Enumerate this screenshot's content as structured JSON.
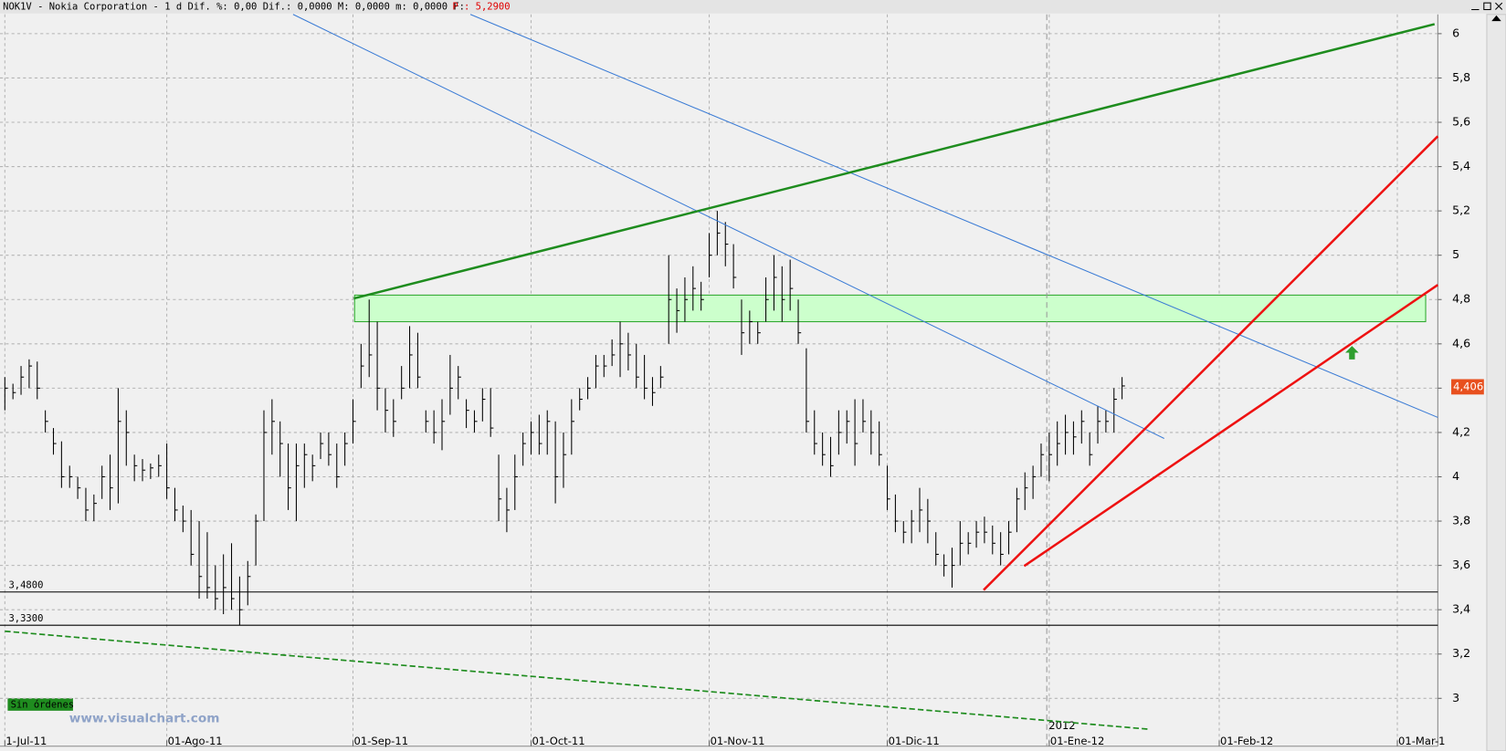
{
  "header": {
    "symbol_text": "NOK1V - Nokia Corporation -  1 d Dif. %: 0,00 Dif.: 0,0000 M: 0,0000 m: 0,0000 F:",
    "price_text": "P : 5,2900"
  },
  "status": {
    "orders": "Sin órdenes",
    "watermark": "www.visualchart.com"
  },
  "chart_data": {
    "type": "ohlc",
    "color": "#000000",
    "grid": true,
    "xlim": [
      -0.6,
      177
    ],
    "ylim": [
      2.784,
      6.087
    ],
    "xticks": [
      {
        "value": 0,
        "label": "1-Jul-11"
      },
      {
        "value": 20,
        "label": "01-Ago-11"
      },
      {
        "value": 43,
        "label": "01-Sep-11"
      },
      {
        "value": 65,
        "label": "01-Oct-11"
      },
      {
        "value": 87,
        "label": "01-Nov-11"
      },
      {
        "value": 109,
        "label": "01-Dic-11"
      },
      {
        "value": 129,
        "label": "01-Ene-12"
      },
      {
        "value": 150,
        "label": "01-Feb-12"
      },
      {
        "value": 172,
        "label": "01-Mar-1"
      }
    ],
    "yticks": [
      3,
      {
        "value": 3.2,
        "label": "3,2"
      },
      {
        "value": 3.4,
        "label": "3,4"
      },
      {
        "value": 3.6,
        "label": "3,6"
      },
      {
        "value": 3.8,
        "label": "3,8"
      },
      4,
      {
        "value": 4.2,
        "label": "4,2"
      },
      {
        "value": 4.4,
        "label": "4,4"
      },
      {
        "value": 4.6,
        "label": "4,6"
      },
      {
        "value": 4.8,
        "label": "4,8"
      },
      5,
      {
        "value": 5.2,
        "label": "5,2"
      },
      {
        "value": 5.4,
        "label": "5,4"
      },
      {
        "value": 5.6,
        "label": "5,6"
      },
      {
        "value": 5.8,
        "label": "5,8"
      },
      6
    ],
    "high": [
      4.45,
      4.42,
      4.5,
      4.53,
      4.52,
      4.3,
      4.22,
      4.16,
      4.05,
      4.0,
      3.95,
      3.92,
      4.05,
      4.1,
      4.4,
      4.3,
      4.1,
      4.08,
      4.06,
      4.1,
      4.15,
      3.95,
      3.87,
      3.85,
      3.8,
      3.75,
      3.6,
      3.65,
      3.7,
      3.55,
      3.62,
      3.83,
      4.3,
      4.35,
      4.25,
      4.15,
      4.15,
      4.15,
      4.1,
      4.2,
      4.2,
      4.15,
      4.2,
      4.35,
      4.6,
      4.8,
      4.7,
      4.4,
      4.35,
      4.5,
      4.68,
      4.65,
      4.3,
      4.3,
      4.35,
      4.55,
      4.5,
      4.35,
      4.3,
      4.4,
      4.4,
      4.1,
      3.95,
      4.1,
      4.2,
      4.25,
      4.28,
      4.3,
      4.25,
      4.2,
      4.35,
      4.4,
      4.45,
      4.55,
      4.55,
      4.62,
      4.7,
      4.65,
      4.6,
      4.55,
      4.45,
      4.5,
      5.0,
      4.85,
      4.9,
      4.95,
      4.88,
      5.1,
      5.2,
      5.15,
      5.05,
      4.8,
      4.75,
      4.7,
      4.9,
      5.0,
      4.95,
      4.98,
      4.8,
      4.58,
      4.3,
      4.2,
      4.18,
      4.3,
      4.3,
      4.35,
      4.35,
      4.3,
      4.25,
      4.05,
      3.92,
      3.8,
      3.85,
      3.95,
      3.9,
      3.75,
      3.65,
      3.68,
      3.8,
      3.75,
      3.8,
      3.82,
      3.78,
      3.75,
      3.8,
      3.95,
      4.02,
      4.05,
      4.15,
      4.2,
      4.25,
      4.28,
      4.25,
      4.3,
      4.2,
      4.32,
      4.3,
      4.4,
      4.45
    ],
    "low": [
      4.3,
      4.35,
      4.37,
      4.4,
      4.35,
      4.2,
      4.1,
      3.95,
      3.95,
      3.9,
      3.8,
      3.8,
      3.9,
      3.85,
      3.88,
      4.05,
      3.98,
      3.98,
      3.99,
      4.0,
      3.9,
      3.8,
      3.75,
      3.6,
      3.45,
      3.45,
      3.4,
      3.38,
      3.4,
      3.33,
      3.42,
      3.6,
      3.8,
      4.1,
      4.0,
      3.85,
      3.8,
      3.95,
      3.98,
      4.08,
      4.05,
      3.95,
      4.05,
      4.15,
      4.4,
      4.45,
      4.3,
      4.2,
      4.18,
      4.35,
      4.4,
      4.4,
      4.2,
      4.15,
      4.12,
      4.28,
      4.35,
      4.22,
      4.2,
      4.25,
      4.18,
      3.8,
      3.75,
      3.85,
      4.05,
      4.1,
      4.1,
      4.1,
      3.88,
      3.95,
      4.1,
      4.3,
      4.35,
      4.4,
      4.45,
      4.5,
      4.45,
      4.48,
      4.4,
      4.35,
      4.32,
      4.4,
      4.6,
      4.65,
      4.7,
      4.75,
      4.75,
      4.9,
      5.0,
      4.95,
      4.85,
      4.55,
      4.6,
      4.6,
      4.7,
      4.75,
      4.7,
      4.75,
      4.6,
      4.2,
      4.1,
      4.05,
      4.0,
      4.1,
      4.15,
      4.05,
      4.2,
      4.1,
      4.05,
      3.85,
      3.75,
      3.7,
      3.7,
      3.75,
      3.7,
      3.6,
      3.55,
      3.5,
      3.6,
      3.65,
      3.68,
      3.7,
      3.65,
      3.6,
      3.65,
      3.75,
      3.85,
      3.9,
      4.0,
      3.98,
      4.05,
      4.1,
      4.1,
      4.15,
      4.05,
      4.15,
      4.2,
      4.2,
      4.35
    ],
    "close": [
      4.4,
      4.38,
      4.45,
      4.5,
      4.4,
      4.25,
      4.15,
      4.0,
      4.0,
      3.95,
      3.85,
      3.88,
      4.0,
      3.95,
      4.25,
      4.2,
      4.05,
      4.03,
      4.04,
      4.05,
      3.95,
      3.85,
      3.8,
      3.65,
      3.55,
      3.5,
      3.45,
      3.5,
      3.45,
      3.4,
      3.55,
      3.8,
      4.2,
      4.25,
      4.15,
      3.95,
      4.05,
      4.1,
      4.05,
      4.15,
      4.1,
      4.0,
      4.15,
      4.25,
      4.5,
      4.55,
      4.4,
      4.3,
      4.25,
      4.4,
      4.55,
      4.45,
      4.25,
      4.2,
      4.25,
      4.4,
      4.45,
      4.3,
      4.25,
      4.35,
      4.22,
      3.9,
      3.85,
      4.0,
      4.15,
      4.2,
      4.15,
      4.25,
      4.0,
      4.1,
      4.25,
      4.35,
      4.4,
      4.5,
      4.5,
      4.55,
      4.6,
      4.55,
      4.45,
      4.4,
      4.38,
      4.45,
      4.8,
      4.75,
      4.8,
      4.85,
      4.8,
      5.0,
      5.1,
      5.05,
      4.9,
      4.65,
      4.7,
      4.65,
      4.8,
      4.9,
      4.8,
      4.85,
      4.65,
      4.25,
      4.15,
      4.1,
      4.05,
      4.2,
      4.25,
      4.15,
      4.25,
      4.2,
      4.1,
      3.9,
      3.8,
      3.75,
      3.8,
      3.85,
      3.8,
      3.65,
      3.6,
      3.6,
      3.7,
      3.7,
      3.75,
      3.75,
      3.7,
      3.65,
      3.75,
      3.9,
      3.95,
      4.0,
      4.1,
      4.1,
      4.15,
      4.2,
      4.18,
      4.25,
      4.1,
      4.25,
      4.25,
      4.35,
      4.41
    ],
    "levels": [
      {
        "value": 3.48,
        "label": "3,4800"
      },
      {
        "value": 3.33,
        "label": "3,3300"
      }
    ],
    "zone": {
      "x": [
        43.2,
        175.5
      ],
      "y": [
        4.7,
        4.82
      ],
      "color": "#ccffcc",
      "border": "#2ea82e"
    },
    "trendlines": [
      {
        "x": [
          35.6,
          143.2
        ],
        "y": [
          6.087,
          4.173
        ],
        "color": "#3a7bd5",
        "weight": "thin",
        "style": "solid"
      },
      {
        "x": [
          57.5,
          177
        ],
        "y": [
          6.087,
          4.268
        ],
        "color": "#3a7bd5",
        "weight": "thin",
        "style": "solid"
      },
      {
        "x": [
          43.1,
          176.6
        ],
        "y": [
          4.805,
          6.043
        ],
        "color": "#1e8c1e",
        "weight": "thick",
        "style": "solid"
      },
      {
        "x": [
          120.9,
          177
        ],
        "y": [
          3.489,
          5.537
        ],
        "color": "#ee1111",
        "weight": "thick",
        "style": "solid"
      },
      {
        "x": [
          125.9,
          177
        ],
        "y": [
          3.597,
          4.866
        ],
        "color": "#ee1111",
        "weight": "thick",
        "style": "solid"
      },
      {
        "x": [
          0,
          141.2
        ],
        "y": [
          3.303,
          2.861
        ],
        "color": "#1e8c1e",
        "weight": "medium",
        "style": "dashed"
      }
    ],
    "year_marker": {
      "x": 128.7,
      "label": "2012"
    },
    "last_price": {
      "value": 4.406,
      "label": "4,406",
      "color": "#e8501e"
    },
    "signal": {
      "x": 166.4,
      "y": 4.56,
      "color": "#2e9e2e"
    }
  }
}
